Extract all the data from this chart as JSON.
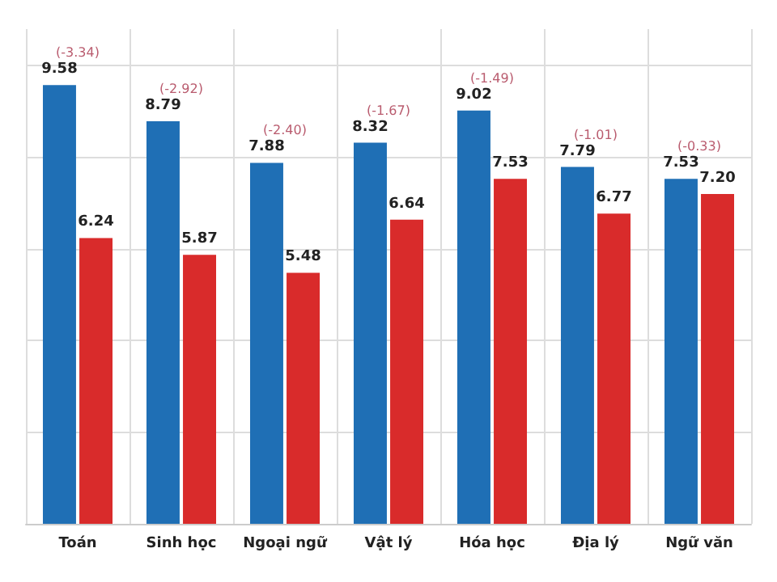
{
  "chart_data": {
    "type": "bar",
    "categories": [
      "Toán",
      "Sinh học",
      "Ngoại ngữ",
      "Vật lý",
      "Hóa học",
      "Địa lý",
      "Ngữ văn"
    ],
    "series": [
      {
        "color": "#1f6fb5",
        "values": [
          9.58,
          8.79,
          7.88,
          8.32,
          9.02,
          7.79,
          7.53
        ],
        "value_labels": [
          "9.58",
          "8.79",
          "7.88",
          "8.32",
          "9.02",
          "7.79",
          "7.53"
        ]
      },
      {
        "color": "#d92b2b",
        "values": [
          6.24,
          5.87,
          5.48,
          6.64,
          7.53,
          6.77,
          7.2
        ],
        "value_labels": [
          "6.24",
          "5.87",
          "5.48",
          "6.64",
          "7.53",
          "6.77",
          "7.20"
        ]
      }
    ],
    "annotations": [
      "(-3.34)",
      "(-2.92)",
      "(-2.40)",
      "(-1.67)",
      "(-1.49)",
      "(-1.01)",
      "(-0.33)"
    ],
    "ylim": [
      0,
      10.8
    ],
    "yticks": [
      {
        "value": 0,
        "label": null
      },
      {
        "value": 2,
        "label": null
      },
      {
        "value": 4,
        "label": null
      },
      {
        "value": 6,
        "label": null
      },
      {
        "value": 8,
        "label": null
      },
      {
        "value": 10,
        "label": null
      }
    ],
    "tick_labels": "x",
    "grid": true
  }
}
